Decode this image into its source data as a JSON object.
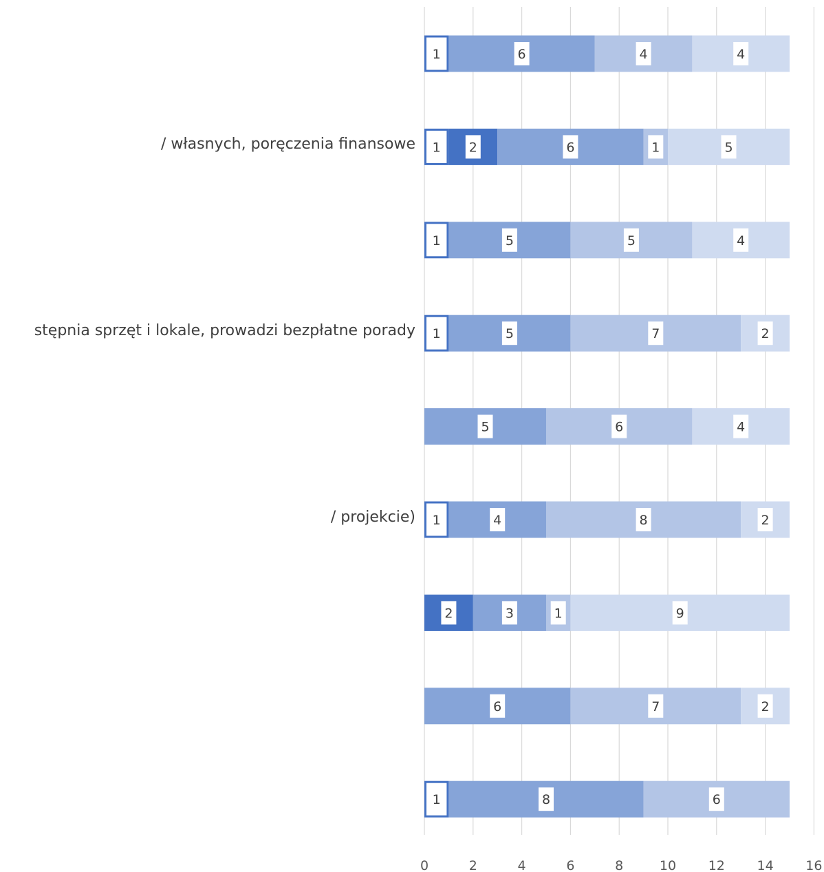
{
  "chart_data": {
    "type": "bar",
    "orientation": "horizontal",
    "stacked": true,
    "categories": [
      "",
      "/ własnych, poręczenia finansowe",
      "",
      "stępnia sprzęt i lokale, prowadzi bezpłatne porady",
      "",
      "/ projekcie)",
      "",
      "",
      ""
    ],
    "series": [
      {
        "values": [
          1,
          1,
          1,
          1,
          0,
          1,
          0,
          0,
          1
        ],
        "color": "#ffffff",
        "outline": "#4472c4"
      },
      {
        "values": [
          0,
          2,
          0,
          0,
          0,
          0,
          2,
          0,
          0
        ],
        "color": "#4472c4"
      },
      {
        "values": [
          6,
          6,
          5,
          5,
          5,
          4,
          3,
          6,
          8
        ],
        "color": "#86a4d8"
      },
      {
        "values": [
          4,
          1,
          5,
          7,
          6,
          8,
          1,
          7,
          6
        ],
        "color": "#b3c5e6"
      },
      {
        "values": [
          4,
          5,
          4,
          2,
          4,
          2,
          9,
          2,
          0
        ],
        "color": "#cfdbf0"
      }
    ],
    "x_ticks": [
      "0",
      "2",
      "4",
      "6",
      "8",
      "10",
      "12",
      "14",
      "16"
    ],
    "xlim": [
      0,
      16
    ],
    "grid": true,
    "data_labels": true
  }
}
